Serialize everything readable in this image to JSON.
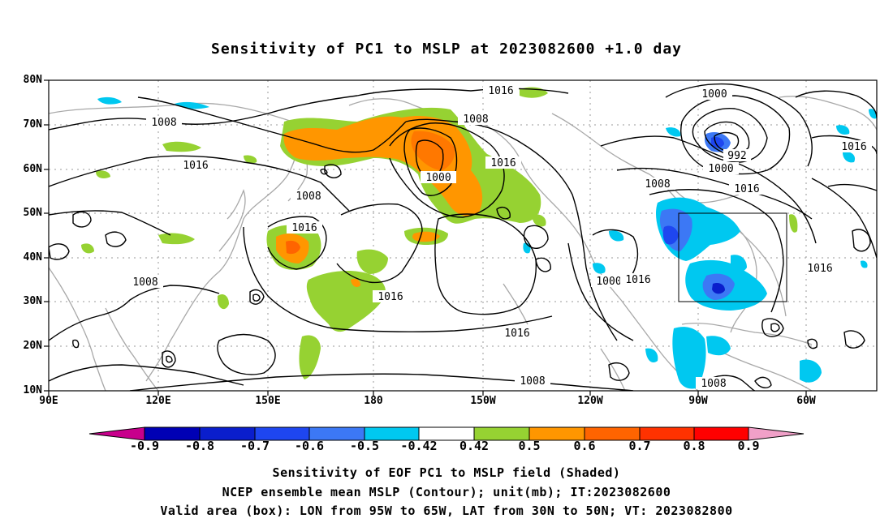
{
  "title": "Sensitivity of PC1 to MSLP at 2023082600 +1.0 day",
  "lat_labels": [
    "80N",
    "70N",
    "60N",
    "50N",
    "40N",
    "30N",
    "20N",
    "10N"
  ],
  "lon_labels": [
    "90E",
    "120E",
    "150E",
    "180",
    "150W",
    "120W",
    "90W",
    "60W"
  ],
  "colorbar": {
    "labels": [
      "-0.9",
      "-0.8",
      "-0.7",
      "-0.6",
      "-0.5",
      "-0.42",
      "0.42",
      "0.5",
      "0.6",
      "0.7",
      "0.8",
      "0.9"
    ],
    "colors": [
      "#c8008c",
      "#0000b4",
      "#0a1ecc",
      "#1e46f0",
      "#3c78f5",
      "#00c8f0",
      "#ffffff",
      "#96d232",
      "#ff9600",
      "#ff6400",
      "#ff3200",
      "#ff0000",
      "#f0a0c8"
    ]
  },
  "contour_labels": [
    "1016",
    "1008",
    "1016",
    "1008",
    "1000",
    "1016",
    "1008",
    "1016",
    "1008",
    "1016",
    "1016",
    "1000",
    "992",
    "1000",
    "1016",
    "1008",
    "1016",
    "1016",
    "1000",
    "1016",
    "1016",
    "1008",
    "1008"
  ],
  "box": {
    "lon_west": "95W",
    "lon_east": "65W",
    "lat_south": "30N",
    "lat_north": "50N"
  },
  "captions": [
    "Sensitivity of EOF PC1 to MSLP field (Shaded)",
    "NCEP ensemble mean MSLP (Contour); unit(mb); IT:2023082600",
    "Valid area (box): LON from 95W to 65W, LAT from 30N to 50N; VT: 2023082800"
  ]
}
